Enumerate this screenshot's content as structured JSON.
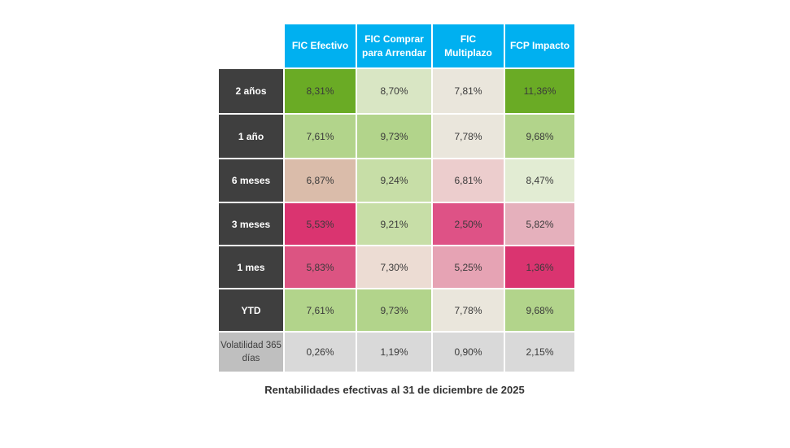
{
  "table": {
    "columns": [
      "FIC Efectivo",
      "FIC Comprar para Arrendar",
      "FIC Multiplazo",
      "FCP Impacto"
    ],
    "rows": [
      {
        "label": "2 años",
        "values": [
          "8,31%",
          "8,70%",
          "7,81%",
          "11,36%"
        ],
        "colors": [
          "#6aab25",
          "#d9e6c4",
          "#eae6dc",
          "#6aab25"
        ],
        "type": "period"
      },
      {
        "label": "1 año",
        "values": [
          "7,61%",
          "9,73%",
          "7,78%",
          "9,68%"
        ],
        "colors": [
          "#b2d48b",
          "#b2d48b",
          "#eae6dc",
          "#b2d48b"
        ],
        "type": "period"
      },
      {
        "label": "6 meses",
        "values": [
          "6,87%",
          "9,24%",
          "6,81%",
          "8,47%"
        ],
        "colors": [
          "#dabcaa",
          "#c7dea7",
          "#eccdcd",
          "#e2ecd3"
        ],
        "type": "period"
      },
      {
        "label": "3 meses",
        "values": [
          "5,53%",
          "9,21%",
          "2,50%",
          "5,82%"
        ],
        "colors": [
          "#da3470",
          "#c7dea7",
          "#de5286",
          "#e5b0bc"
        ],
        "type": "period"
      },
      {
        "label": "1 mes",
        "values": [
          "5,83%",
          "7,30%",
          "5,25%",
          "1,36%"
        ],
        "colors": [
          "#dc5482",
          "#ecdcd3",
          "#e6a3b4",
          "#da3470"
        ],
        "type": "period"
      },
      {
        "label": "YTD",
        "values": [
          "7,61%",
          "9,73%",
          "7,78%",
          "9,68%"
        ],
        "colors": [
          "#b2d48b",
          "#b2d48b",
          "#eae6dc",
          "#b2d48b"
        ],
        "type": "period"
      },
      {
        "label": "Volatilidad 365 días",
        "values": [
          "0,26%",
          "1,19%",
          "0,90%",
          "2,15%"
        ],
        "colors": [
          "#d9d9d9",
          "#d9d9d9",
          "#d9d9d9",
          "#d9d9d9"
        ],
        "type": "volatility"
      }
    ]
  },
  "caption": "Rentabilidades efectivas al 31 de diciembre de 2025"
}
